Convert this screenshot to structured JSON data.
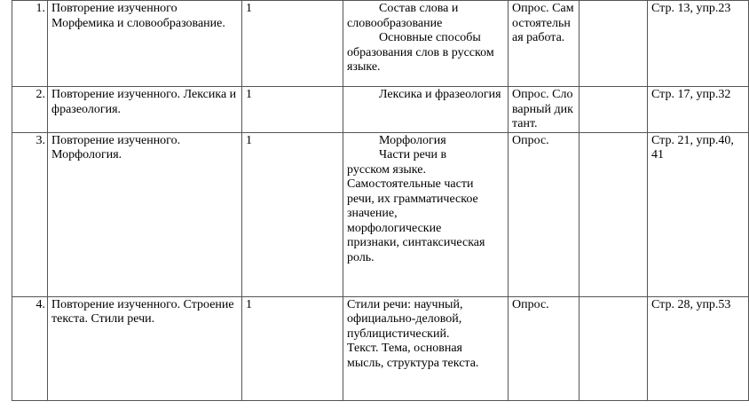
{
  "rows": [
    {
      "num": "1.",
      "topic": "Повторение изученного Морфемика и  словообразование.",
      "hours": "1",
      "content": [
        "Состав слова и словообразование",
        "Основные способы образования слов в русском языке."
      ],
      "control": "Опрос. Самостоятельная работа.",
      "date": "",
      "homework": "Стр. 13, упр.23"
    },
    {
      "num": "2.",
      "topic": "Повторение изученного. Лексика и фразеология.",
      "hours": "1",
      "content": [
        "Лексика и фразеология"
      ],
      "control": "Опрос. Словарный диктант.",
      "date": "",
      "homework": "Стр. 17, упр.32"
    },
    {
      "num": "3.",
      "topic": "Повторение изученного. Морфология.",
      "hours": "1",
      "content": [
        "Морфология",
        "Части речи в русском языке. Самостоятельные части речи, их грамматическое значение, морфологические признаки, синтаксическая роль."
      ],
      "control": "Опрос.",
      "date": "",
      "homework": "Стр. 21, упр.40, 41"
    },
    {
      "num": "4.",
      "topic": "Повторение изученного. Строение текста. Стили речи.",
      "hours": "1",
      "content": [
        "Стили речи: научный, официально-деловой, публицистический.",
        "Текст. Тема, основная мысль, структура текста."
      ],
      "control": "Опрос.",
      "date": "",
      "homework": "Стр. 28, упр.53"
    }
  ]
}
